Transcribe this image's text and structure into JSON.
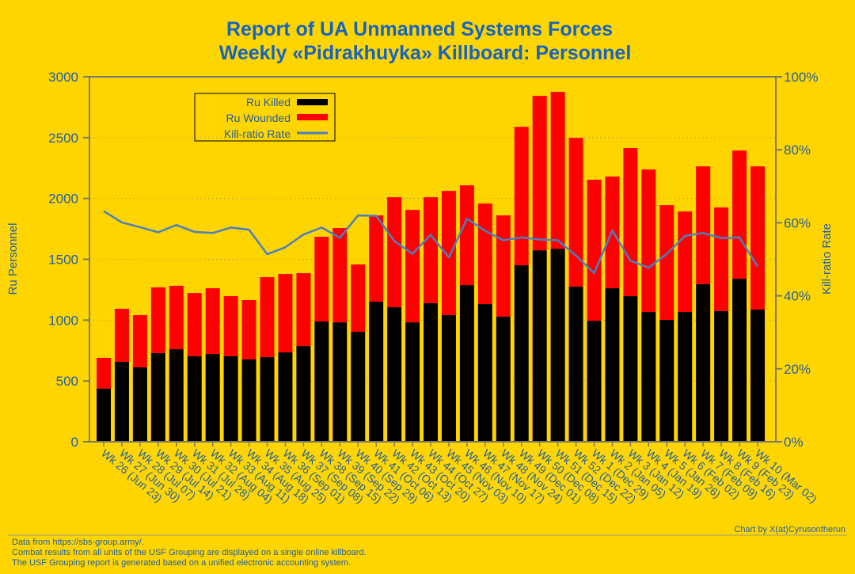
{
  "chart_data": {
    "type": "bar",
    "stacked": true,
    "title": "Report of UA Unmanned Systems Forces",
    "subtitle": "Weekly «Pidrakhuyka» Killboard: Personnel",
    "ylabel": "Ru Personnel",
    "y2label": "Kill-ratio Rate",
    "ylim": [
      0,
      3000
    ],
    "y2lim": [
      0,
      100
    ],
    "yticks": [
      "0",
      "500",
      "1000",
      "1500",
      "2000",
      "2500",
      "3000"
    ],
    "y2ticks": [
      "0%",
      "20%",
      "40%",
      "60%",
      "80%",
      "100%"
    ],
    "grid": true,
    "legend_position": "top-left",
    "categories": [
      "Wk 26 (Jun 23)",
      "Wk 27 (Jun 30)",
      "Wk 28 (Jul 07)",
      "Wk 29 (Jul 14)",
      "Wk 30 (Jul 21)",
      "Wk 31 (Jul 28)",
      "Wk 32 (Aug 04)",
      "Wk 33 (Aug 11)",
      "Wk 34 (Aug 18)",
      "Wk 35 (Aug 25)",
      "Wk 36 (Sep 01)",
      "Wk 37 (Sep 08)",
      "Wk 38 (Sep 15)",
      "Wk 39 (Sep 22)",
      "Wk 40 (Sep 29)",
      "Wk 41 (Oct 06)",
      "Wk 42 (Oct 13)",
      "Wk 43 (Oct 20)",
      "Wk 44 (Oct 27)",
      "Wk 45 (Nov 03)",
      "Wk 46 (Nov 10)",
      "Wk 47 (Nov 17)",
      "Wk 48 (Nov 24)",
      "Wk 49 (Dec 01)",
      "Wk 50 (Dec 08)",
      "Wk 51 (Dec 15)",
      "Wk 52 (Dec 22)",
      "Wk 1 (Dec 29)",
      "Wk 2 (Jan 05)",
      "Wk 3 (Jan 12)",
      "Wk 4 (Jan 19)",
      "Wk 5 (Jan 26)",
      "Wk 6 (Feb 02)",
      "Wk 7 (Feb 09)",
      "Wk 8 (Feb 16)",
      "Wk 9 (Feb 23)",
      "Wk 10 (Mar 02)"
    ],
    "series": [
      {
        "name": "Ru Killed",
        "color": "#000000",
        "values": [
          436,
          657,
          612,
          729,
          761,
          703,
          722,
          703,
          677,
          696,
          735,
          787,
          989,
          982,
          904,
          1152,
          1106,
          982,
          1139,
          1041,
          1288,
          1132,
          1028,
          1451,
          1574,
          1587,
          1275,
          995,
          1262,
          1197,
          1067,
          1002,
          1067,
          1295,
          1074,
          1340,
          1087
        ]
      },
      {
        "name": "Ru Wounded",
        "color": "#FF0000",
        "values": [
          254,
          436,
          429,
          540,
          521,
          520,
          540,
          494,
          488,
          657,
          644,
          599,
          696,
          775,
          553,
          709,
          904,
          924,
          871,
          1021,
          820,
          826,
          833,
          1138,
          1269,
          1289,
          1223,
          1159,
          918,
          1217,
          1171,
          943,
          826,
          969,
          852,
          1054,
          1177
        ]
      },
      {
        "name": "Kill-ratio Rate",
        "color": "#4A7FC0",
        "axis": "right",
        "unit": "%",
        "values": [
          63.2,
          60.1,
          58.8,
          57.4,
          59.4,
          57.5,
          57.2,
          58.7,
          58.1,
          51.4,
          53.3,
          56.8,
          58.7,
          55.9,
          62.0,
          61.9,
          55.0,
          51.5,
          56.7,
          50.5,
          61.1,
          57.8,
          55.2,
          56.0,
          55.4,
          55.2,
          51.0,
          46.2,
          57.9,
          49.6,
          47.7,
          51.5,
          56.4,
          57.2,
          55.8,
          56.0,
          48.0
        ]
      }
    ]
  },
  "footer": {
    "credit": "Chart by X(at)Cyrusontherun",
    "notes": [
      "Data from https://sbs-group.army/.",
      "Combat results from all units of the USF Grouping are displayed on a single online killboard.",
      "The USF Grouping report is generated based on a unified electronic accounting system."
    ]
  }
}
